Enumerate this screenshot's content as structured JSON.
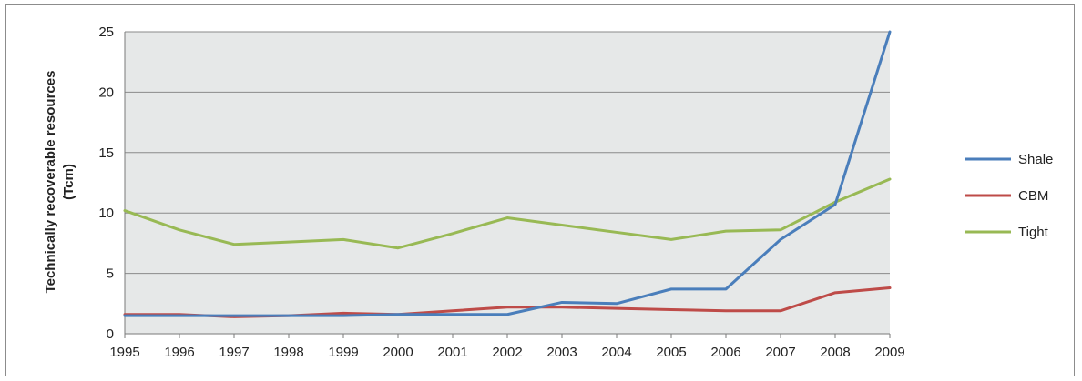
{
  "chart_data": {
    "type": "line",
    "title": "",
    "xlabel": "",
    "ylabel_line1": "Technically recoverable resources",
    "ylabel_line2": "(Tcm)",
    "x": [
      "1995",
      "1996",
      "1997",
      "1998",
      "1999",
      "2000",
      "2001",
      "2002",
      "2003",
      "2004",
      "2005",
      "2006",
      "2007",
      "2008",
      "2009"
    ],
    "ylim": [
      0,
      25
    ],
    "yticks": [
      "0",
      "5",
      "10",
      "15",
      "20",
      "25"
    ],
    "grid": true,
    "legend_position": "right",
    "series": [
      {
        "name": "Shale",
        "color": "#4a7ebb",
        "values": [
          1.5,
          1.5,
          1.5,
          1.5,
          1.5,
          1.6,
          1.6,
          1.6,
          2.6,
          2.5,
          3.7,
          3.7,
          7.8,
          10.7,
          25.0
        ]
      },
      {
        "name": "CBM",
        "color": "#be4b48",
        "values": [
          1.6,
          1.6,
          1.4,
          1.5,
          1.7,
          1.6,
          1.9,
          2.2,
          2.2,
          2.1,
          2.0,
          1.9,
          1.9,
          3.4,
          3.8
        ]
      },
      {
        "name": "Tight",
        "color": "#98b954",
        "values": [
          10.2,
          8.6,
          7.4,
          7.6,
          7.8,
          7.1,
          8.3,
          9.6,
          9.0,
          8.4,
          7.8,
          8.5,
          8.6,
          10.9,
          12.8
        ]
      }
    ]
  }
}
